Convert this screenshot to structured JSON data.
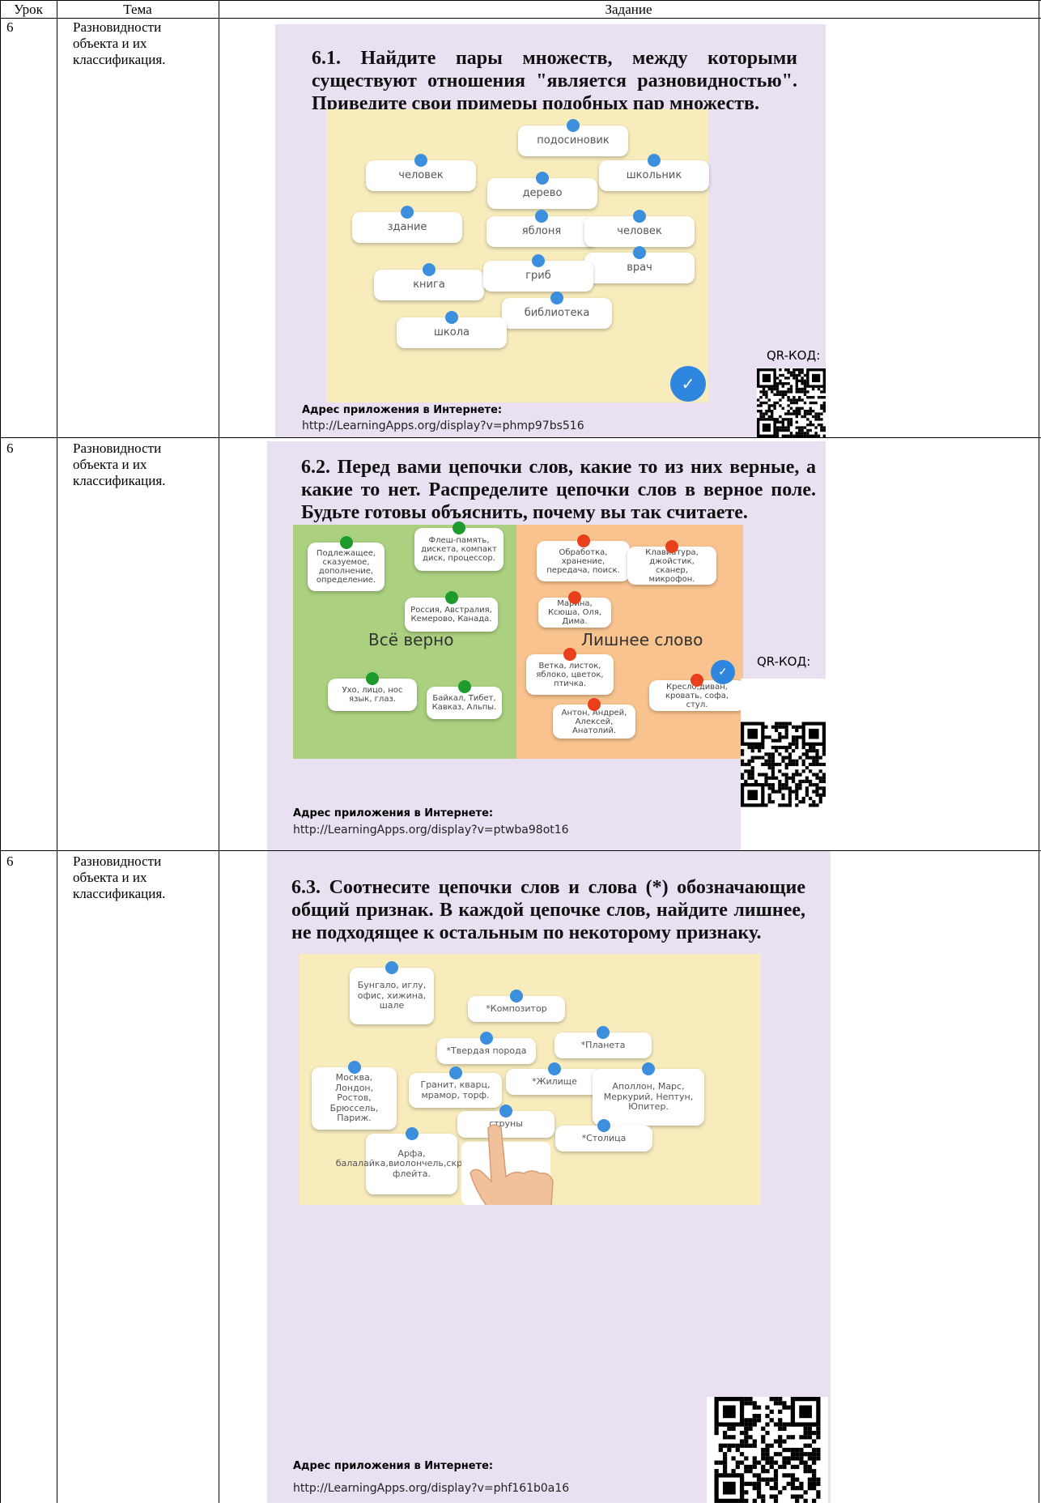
{
  "header": {
    "columns": [
      "Урок",
      "Тема",
      "Задание"
    ]
  },
  "rows": [
    {
      "lesson": "6",
      "topic": "Разновидности объекта и их классификация.",
      "task": {
        "title": "6.1. Найдите пары множеств, между которыми существуют отношения \"является разновидностью\". Приведите свои примеры подобных пар множеств.",
        "cards": [
          "подосиновик",
          "человек",
          "школьник",
          "дерево",
          "здание",
          "яблоня",
          "человек",
          "врач",
          "книга",
          "гриб",
          "библиотека",
          "школа"
        ],
        "address_label": "Адрес приложения в Интернете:",
        "url": "http://LearningApps.org/display?v=phmp97bs516",
        "qr_label": "QR-КОД:"
      }
    },
    {
      "lesson": "6",
      "topic": "Разновидности объекта и их классификация.",
      "task": {
        "title": "6.2. Перед вами цепочки слов, какие то из них верные, а какие то нет. Распределите цепочки слов в верное поле. Будьте готовы объяснить, почему вы так считаете.",
        "zones": [
          "Всё верно",
          "Лишнее слово"
        ],
        "cards": [
          "Подлежащее, сказуемое, дополнение, определение.",
          "Флеш-память, дискета, компакт диск, процессор.",
          "Россия, Австралия, Кемерово, Канада.",
          "Ухо, лицо, нос язык, глаз.",
          "Байкал, Тибет, Кавказ, Альпы.",
          "Обработка, хранение, передача, поиск.",
          "Клавиатура, джойстик, сканер, микрофон.",
          "Марина, Ксюша, Оля, Дима.",
          "Ветка, листок, яблоко, цветок, птичка.",
          "Кресло,диван, кровать, софа, стул.",
          "Антон, Андрей, Алексей, Анатолий."
        ],
        "address_label": "Адрес приложения в Интернете:",
        "url": "http://LearningApps.org/display?v=ptwba98ot16",
        "qr_label": "QR-КОД:"
      }
    },
    {
      "lesson": "6",
      "topic": "Разновидности объекта и их классификация.",
      "task": {
        "title": "6.3. Соотнесите цепочки слов и слова (*) обозначающие общий признак. В каждой цепочке слов, найдите лишнее, не подходящее к остальным по некоторому признаку.",
        "cards": [
          "Бунгало, иглу, офис, хижина, шале",
          "*Композитор",
          "*Твердая порода",
          "*Планета",
          "Москва, Лондон, Ростов, Брюссель, Париж.",
          "Гранит, кварц, мрамор, торф.",
          "*Жилище",
          "Аполлон, Марс, Меркурий, Нептун, Юпитер.",
          "струны",
          "*Столица",
          "Арфа, балалайка,виолончель,скрипка, флейта."
        ],
        "address_label": "Адрес приложения в Интернете:",
        "url": "http://LearningApps.org/display?v=phf161b0a16"
      }
    }
  ]
}
